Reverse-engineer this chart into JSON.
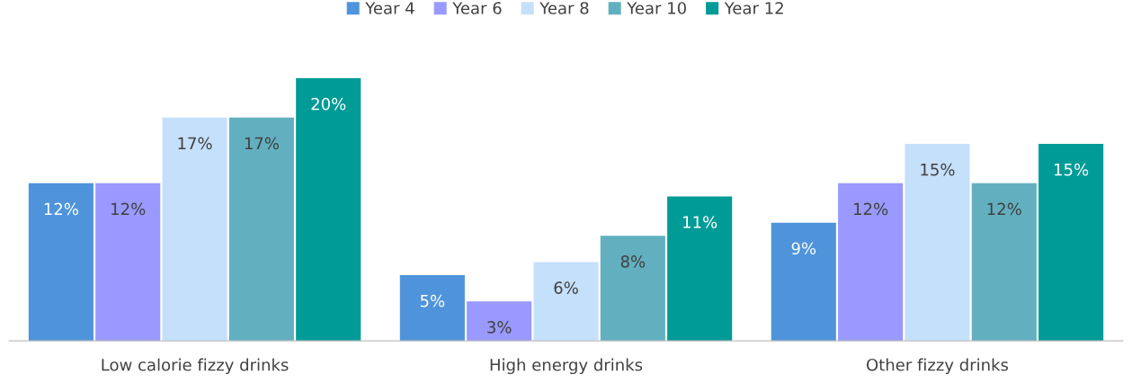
{
  "chart_data": {
    "type": "bar",
    "categories": [
      "Low calorie fizzy drinks",
      "High energy drinks",
      "Other fizzy drinks"
    ],
    "series": [
      {
        "name": "Year 4",
        "color": "#4f94db",
        "values": [
          12,
          5,
          9
        ],
        "value_labels": [
          "12%",
          "5%",
          "9%"
        ]
      },
      {
        "name": "Year 6",
        "color": "#9999ff",
        "values": [
          12,
          3,
          12
        ],
        "value_labels": [
          "12%",
          "3%",
          "12%"
        ]
      },
      {
        "name": "Year 8",
        "color": "#c5e0fb",
        "values": [
          17,
          6,
          15
        ],
        "value_labels": [
          "17%",
          "6%",
          "15%"
        ]
      },
      {
        "name": "Year 10",
        "color": "#62b0bf",
        "values": [
          17,
          8,
          12
        ],
        "value_labels": [
          "17%",
          "8%",
          "12%"
        ]
      },
      {
        "name": "Year 12",
        "color": "#009b96",
        "values": [
          20,
          11,
          15
        ],
        "value_labels": [
          "20%",
          "11%",
          "15%"
        ]
      }
    ],
    "legend": "top",
    "grid": false
  }
}
